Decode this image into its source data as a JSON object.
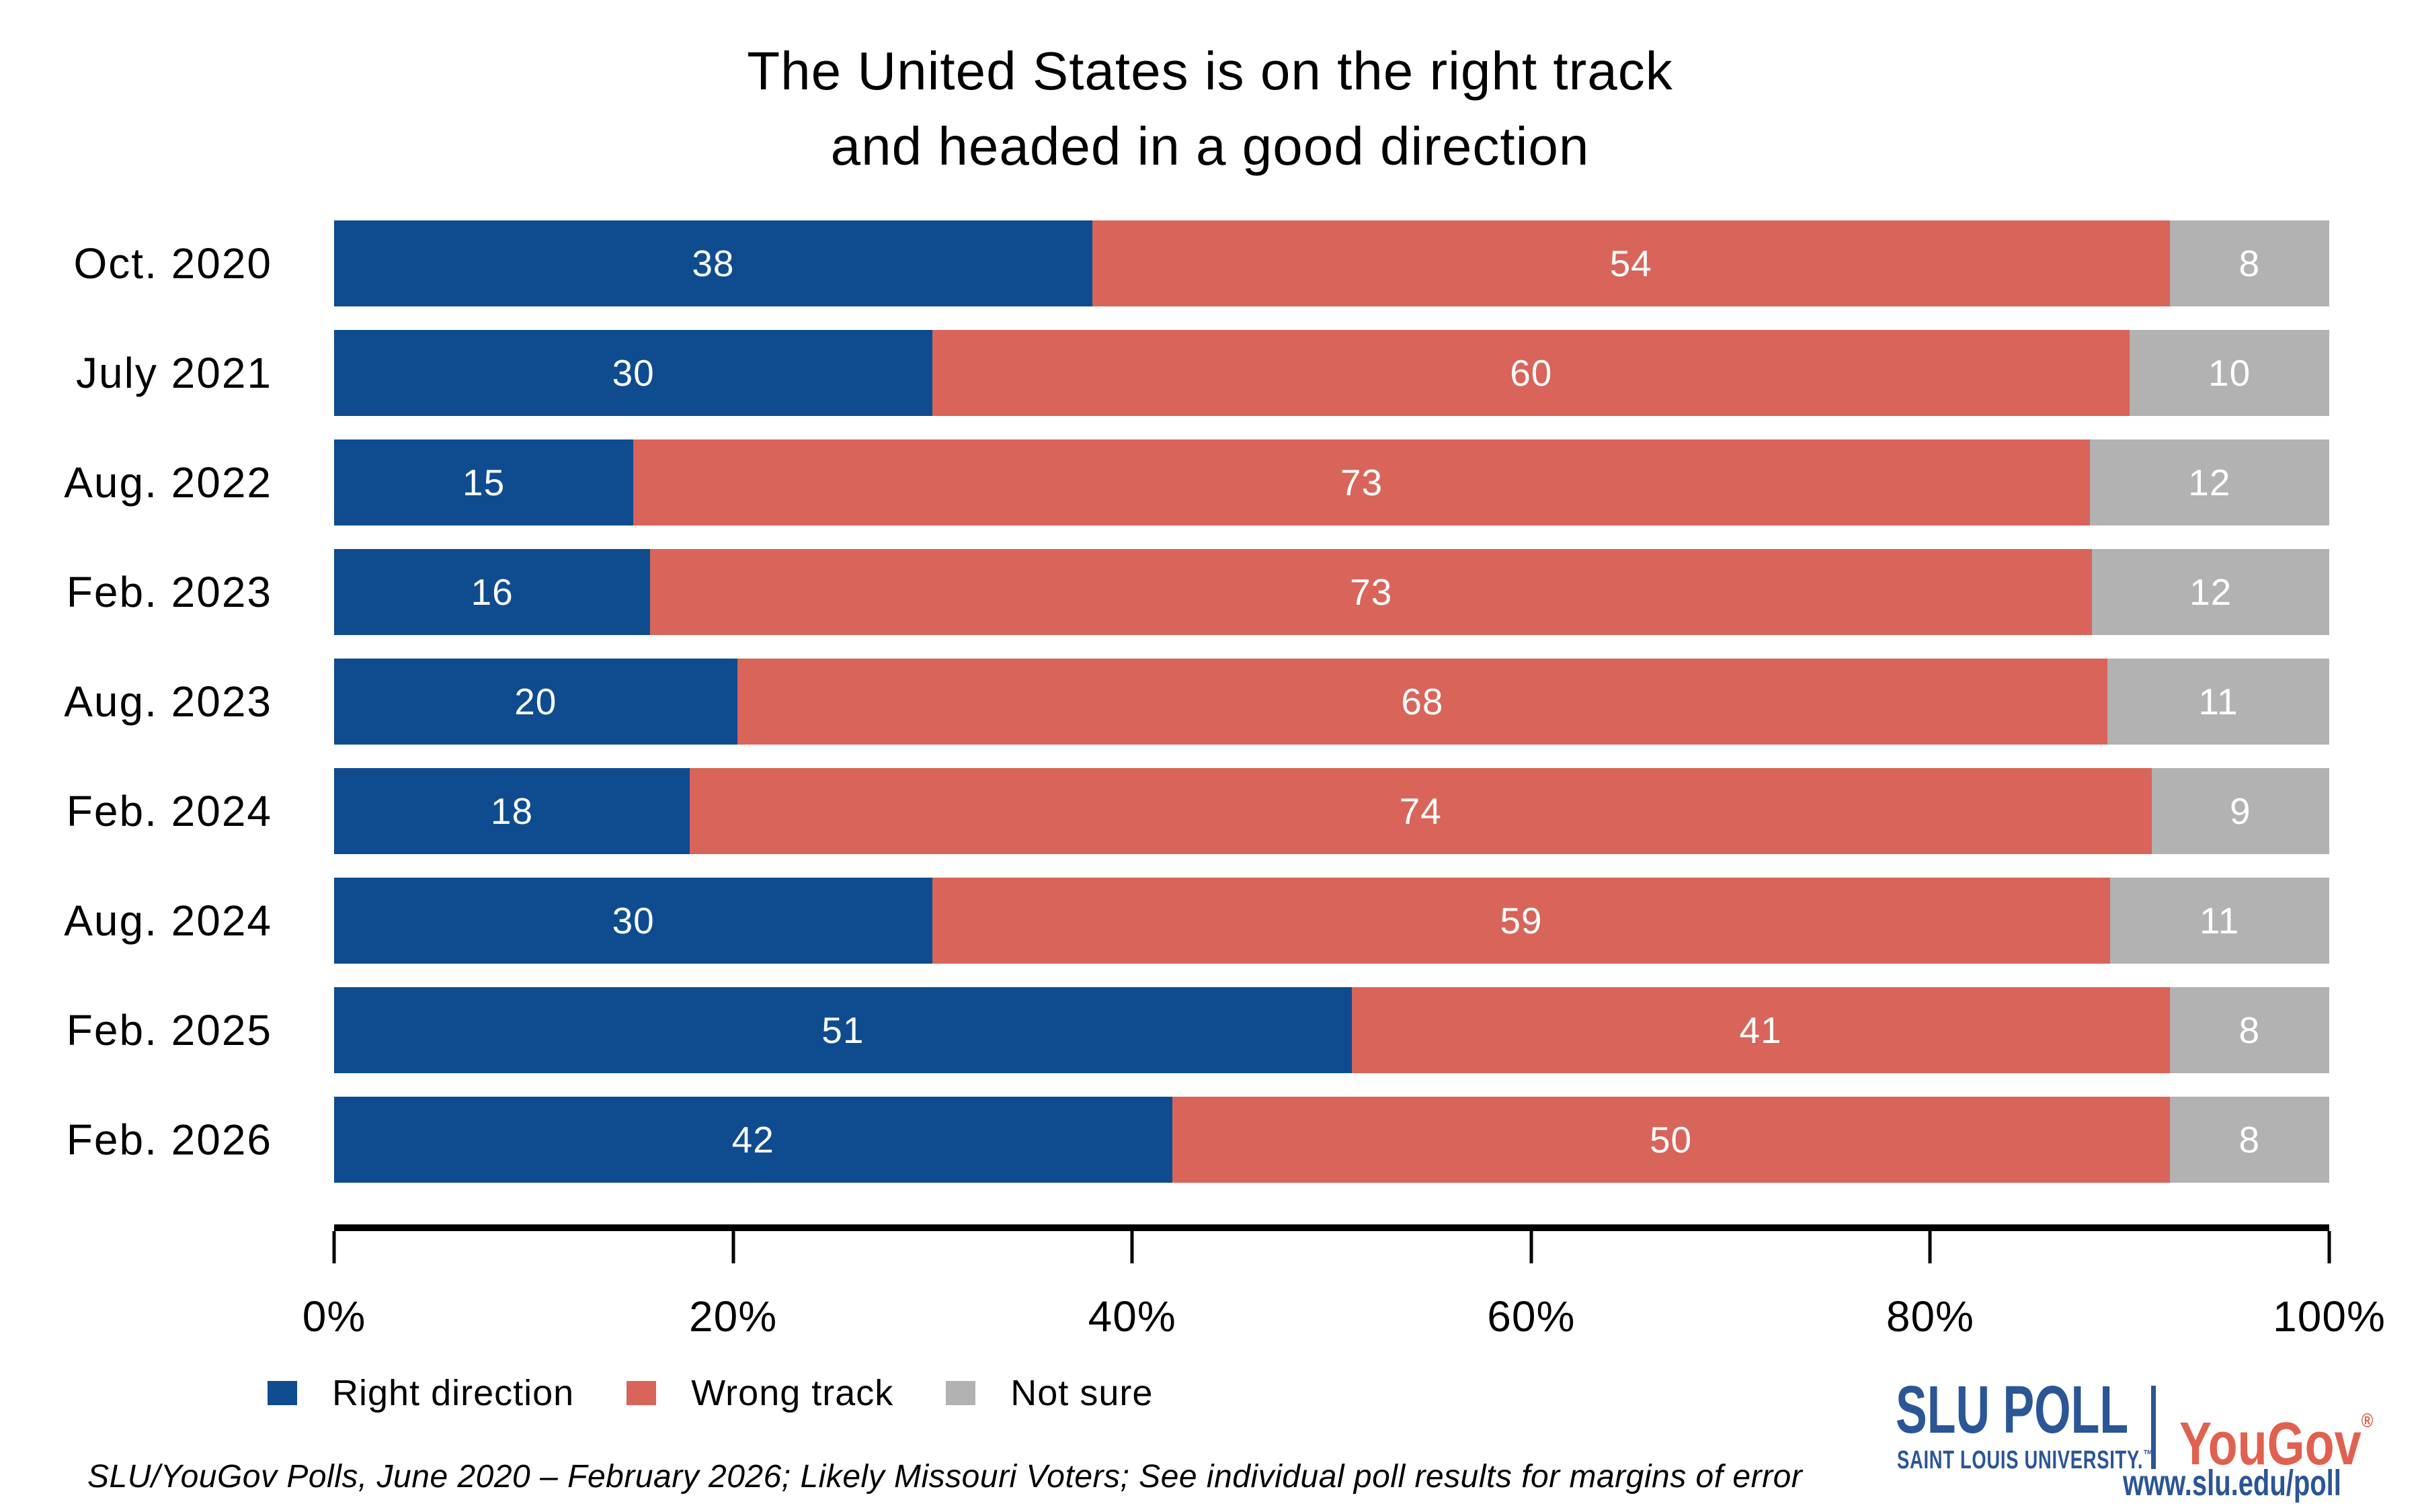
{
  "title": {
    "line1": "The United States is on the right track",
    "line2": "and headed in a good direction"
  },
  "chart_data": {
    "type": "bar",
    "orientation": "horizontal",
    "stacked": true,
    "title": "The United States is on the right track and headed in a good direction",
    "categories": [
      "Oct. 2020",
      "July 2021",
      "Aug. 2022",
      "Feb. 2023",
      "Aug. 2023",
      "Feb. 2024",
      "Aug. 2024",
      "Feb. 2025",
      "Feb. 2026"
    ],
    "series": [
      {
        "name": "Right direction",
        "color": "#0E4C8F",
        "values": [
          38,
          30,
          15,
          16,
          20,
          18,
          30,
          51,
          42
        ]
      },
      {
        "name": "Wrong track",
        "color": "#D8645A",
        "values": [
          54,
          60,
          73,
          73,
          68,
          74,
          59,
          41,
          50
        ]
      },
      {
        "name": "Not sure",
        "color": "#B2B2B2",
        "values": [
          8,
          10,
          12,
          12,
          11,
          9,
          11,
          8,
          8
        ]
      }
    ],
    "xlabel": "",
    "ylabel": "",
    "xlim": [
      0,
      100
    ],
    "x_ticks": [
      "0%",
      "20%",
      "40%",
      "60%",
      "80%",
      "100%"
    ],
    "grid": false,
    "legend_position": "bottom-left",
    "value_labels": "inside-center-white"
  },
  "footer": {
    "source_note": "SLU/YouGov Polls, June 2020 – February 2026; Likely Missouri Voters; See individual poll results for margins of error"
  },
  "branding": {
    "slu_poll": "SLU POLL",
    "slu_subtitle": "SAINT LOUIS UNIVERSITY.",
    "slu_trademark": "™",
    "yougov": "YouGov",
    "yougov_registered": "®",
    "url": "www.slu.edu/poll",
    "slu_blue": "#2B5696",
    "yougov_red": "#E0614F"
  }
}
